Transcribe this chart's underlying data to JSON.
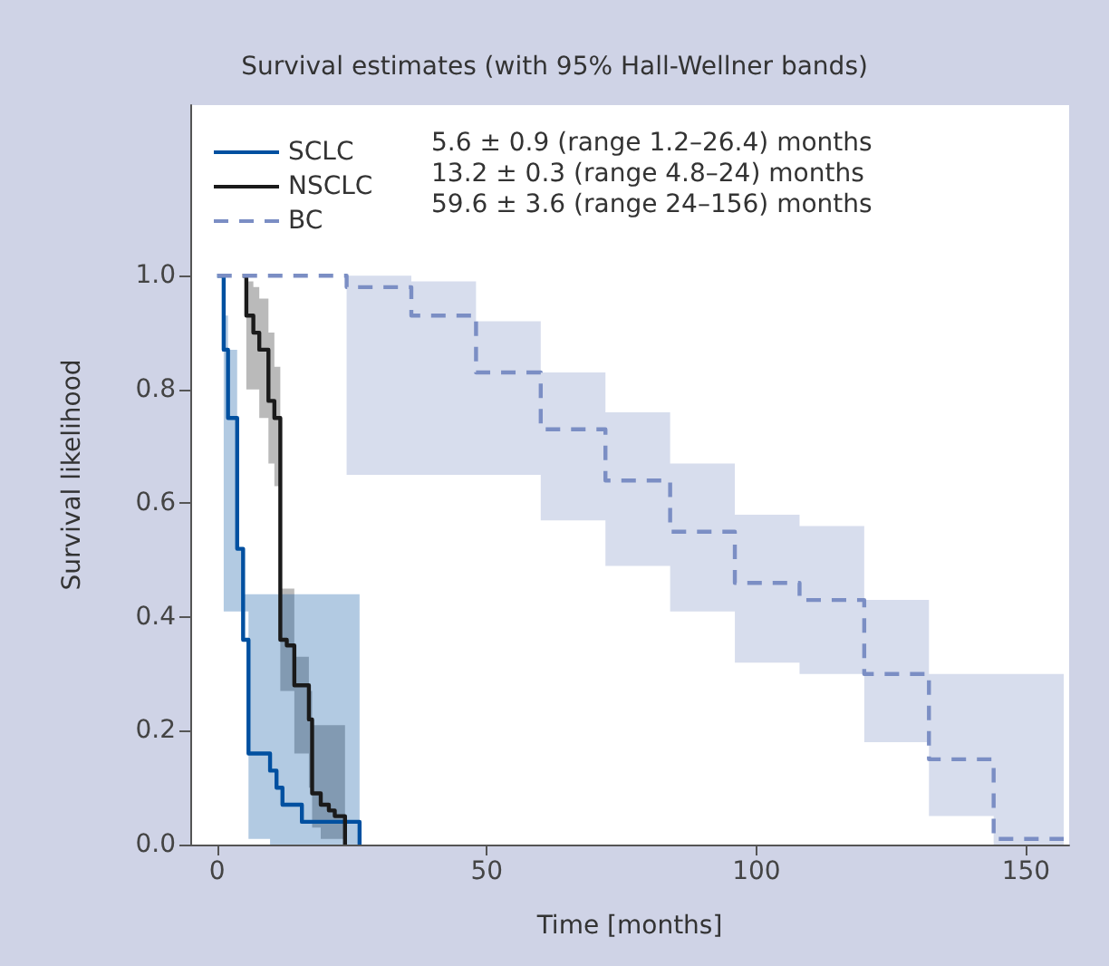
{
  "chart_data": {
    "type": "step",
    "title": "Survival estimates (with 95% Hall-Wellner bands)",
    "xlabel": "Time [months]",
    "ylabel": "Survival likelihood",
    "annotations": [
      "5.6 ± 0.9 (range 1.2–26.4) months",
      "13.2 ± 0.3 (range 4.8–24) months",
      "59.6 ± 3.6 (range 24–156) months"
    ],
    "xlim": [
      -5,
      158
    ],
    "xticks": [
      0,
      50,
      100,
      150
    ],
    "ylim": [
      0,
      1.3
    ],
    "yticks": [
      {
        "value": 0,
        "label": "0.0"
      },
      {
        "value": 0.2,
        "label": "0.2"
      },
      {
        "value": 0.4,
        "label": "0.4"
      },
      {
        "value": 0.6,
        "label": "0.6"
      },
      {
        "value": 0.8,
        "label": "0.8"
      },
      {
        "value": 1.0,
        "label": "1.0"
      }
    ],
    "grid": false,
    "legend": "top left",
    "marker": "none",
    "series": [
      {
        "name": "SCLC",
        "color": "#0050a0",
        "line_style": "solid",
        "x": [
          0,
          1.2,
          2.0,
          3.7,
          4.8,
          5.8,
          9.8,
          11,
          12.1,
          15.7,
          26.4
        ],
        "values": [
          1,
          0.87,
          0.75,
          0.52,
          0.36,
          0.16,
          0.13,
          0.1,
          0.07,
          0.04,
          0
        ],
        "upper": [
          null,
          0.93,
          0.87,
          0.52,
          0.44,
          0.44,
          0.44,
          0.44,
          0.44,
          0.44,
          0.44
        ],
        "lower": [
          null,
          0.41,
          0.41,
          0.41,
          0.41,
          0.01,
          0,
          0,
          0,
          0,
          0
        ]
      },
      {
        "name": "NSCLC",
        "color": "#1a1a1a",
        "line_style": "solid",
        "x": [
          4.7,
          5.4,
          6.7,
          7.8,
          9.5,
          10.6,
          11.7,
          12.9,
          14.3,
          17,
          17.6,
          19.2,
          20.7,
          21.8,
          23.7
        ],
        "values": [
          1,
          0.93,
          0.9,
          0.87,
          0.78,
          0.75,
          0.36,
          0.35,
          0.28,
          0.22,
          0.09,
          0.07,
          0.06,
          0.05,
          0
        ],
        "upper": [
          null,
          0.99,
          0.98,
          0.96,
          0.9,
          0.84,
          0.45,
          0.45,
          0.33,
          0.27,
          0.21,
          0.21,
          0.21,
          0.21,
          0.21
        ],
        "lower": [
          null,
          0.8,
          0.8,
          0.75,
          0.67,
          0.63,
          0.27,
          0.27,
          0.16,
          0.1,
          0.03,
          0.01,
          0.01,
          0.01,
          0.01
        ]
      },
      {
        "name": "BC",
        "color": "#7b8ec4",
        "line_style": "dashed",
        "x": [
          0,
          24,
          36,
          48,
          60,
          72,
          84,
          96,
          108,
          120,
          132,
          144,
          157
        ],
        "values": [
          1.0,
          0.98,
          0.93,
          0.83,
          0.73,
          0.64,
          0.55,
          0.46,
          0.43,
          0.3,
          0.15,
          0.01,
          0.01
        ],
        "upper": [
          null,
          1.0,
          0.99,
          0.92,
          0.83,
          0.76,
          0.67,
          0.58,
          0.56,
          0.43,
          0.3,
          0.3,
          0.3
        ],
        "lower": [
          null,
          0.65,
          0.65,
          0.65,
          0.57,
          0.49,
          0.41,
          0.32,
          0.3,
          0.18,
          0.05,
          0.0,
          0.0
        ]
      }
    ]
  }
}
